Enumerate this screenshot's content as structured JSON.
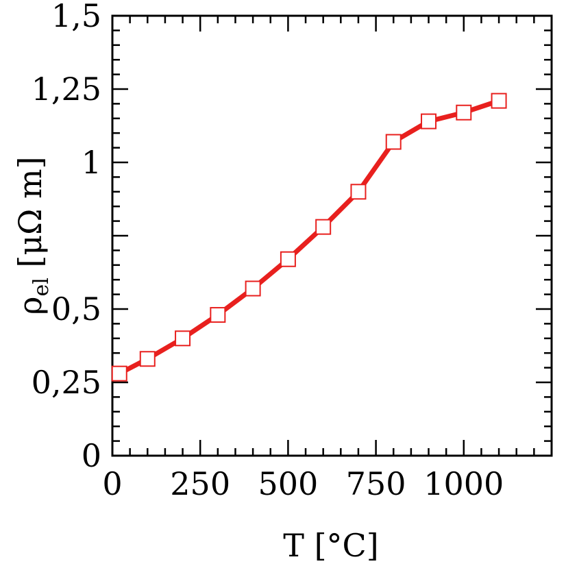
{
  "chart_data": {
    "type": "line",
    "title": "",
    "xlabel": "T [°C]",
    "ylabel_main": "ρ",
    "ylabel_sub": "el",
    "ylabel_unit": " [μΩ m]",
    "xlim": [
      0,
      1250
    ],
    "ylim": [
      0,
      1.5
    ],
    "grid": false,
    "x_ticks": [
      0,
      250,
      500,
      750,
      1000
    ],
    "x_tick_labels": [
      "0",
      "250",
      "500",
      "750",
      "1000"
    ],
    "x_minor_step": 50,
    "y_ticks": [
      0,
      0.25,
      0.5,
      0.75,
      1,
      1.25,
      1.5
    ],
    "y_tick_labels": [
      "0",
      "0,25",
      "0,5",
      "",
      "1",
      "1,25",
      "1,5"
    ],
    "y_minor_step": 0.05,
    "series": [
      {
        "color": "#e8201e",
        "marker": "open-square",
        "x": [
          20,
          100,
          200,
          300,
          400,
          500,
          600,
          700,
          800,
          900,
          1000,
          1100
        ],
        "y": [
          0.28,
          0.33,
          0.4,
          0.48,
          0.57,
          0.67,
          0.78,
          0.9,
          1.07,
          1.14,
          1.17,
          1.21
        ]
      }
    ]
  }
}
